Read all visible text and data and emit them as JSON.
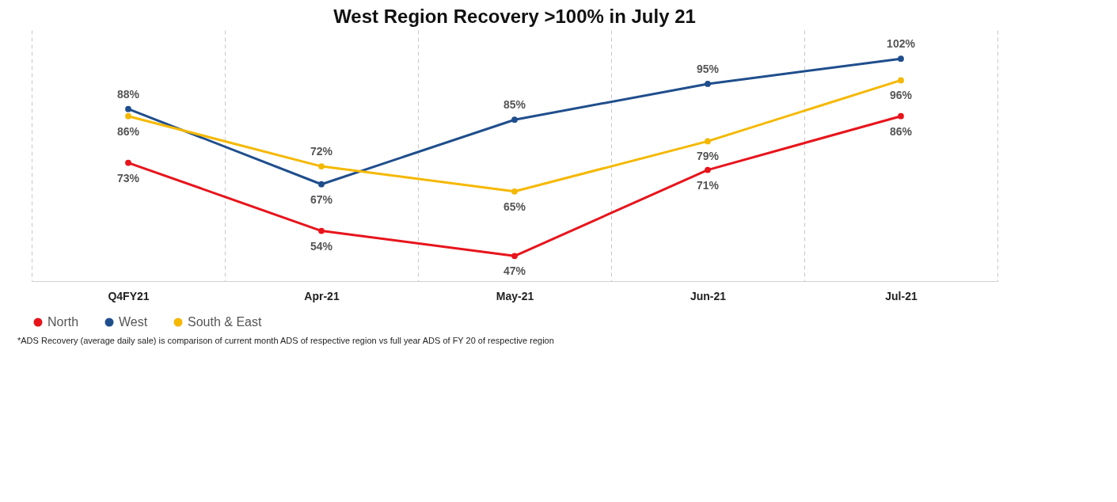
{
  "chart_data": {
    "type": "line",
    "title": "West Region Recovery >100% in July 21",
    "categories": [
      "Q4FY21",
      "Apr-21",
      "May-21",
      "Jun-21",
      "Jul-21"
    ],
    "series": [
      {
        "name": "North",
        "color": "#e8141b",
        "values": [
          73,
          54,
          47,
          71,
          86
        ],
        "value_labels": [
          "73%",
          "54%",
          "47%",
          "71%",
          "86%"
        ]
      },
      {
        "name": "West",
        "color": "#1f4e8c",
        "values": [
          88,
          67,
          85,
          95,
          102
        ],
        "value_labels": [
          "88%",
          "67%",
          "85%",
          "95%",
          "102%"
        ]
      },
      {
        "name": "South & East",
        "color": "#f5b800",
        "values": [
          86,
          72,
          65,
          79,
          96
        ],
        "value_labels": [
          "86%",
          "72%",
          "65%",
          "79%",
          "96%"
        ]
      }
    ],
    "marker": "circle",
    "grid": "x",
    "legend": "bottom",
    "annotations": [
      "*ADS Recovery (average daily sale) is comparison of current month ADS of respective region vs  full year ADS of FY 20 of respective region"
    ]
  }
}
